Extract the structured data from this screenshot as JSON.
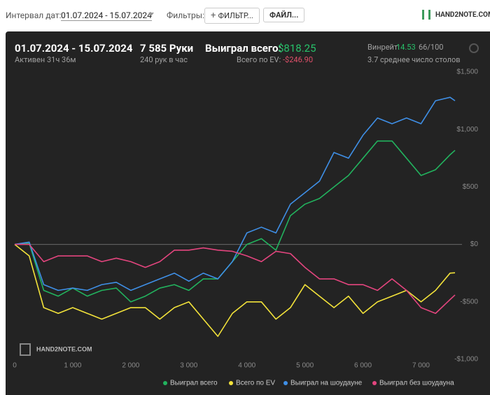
{
  "toolbar": {
    "date_label": "Интервал дат:",
    "date_value": "01.07.2024 - 15.07.2024",
    "filters_label": "Фильтры:",
    "filter_button": "ФИЛЬТР...",
    "file_button": "ФАЙЛ...",
    "logo": "HAND2NOTE.COM"
  },
  "stats": {
    "period": "01.07.2024 - 15.07.2024",
    "active": "Активен 31ч 36м",
    "hands": "7 585 Руки",
    "hands_per_hour": "240 рук в час",
    "won_label": "Выиграл всего:",
    "won_value": "$818.25",
    "ev_label": "Всего по EV:",
    "ev_value": "-$246.90",
    "winrate_label": "Винрейт:",
    "winrate_value": "14.53",
    "winrate_unit": "66/100",
    "tables": "3.7 среднее число столов"
  },
  "chart_data": {
    "type": "line",
    "watermark": "HAND2NOTE.COM",
    "x": [
      0,
      250,
      500,
      750,
      1000,
      1250,
      1500,
      1750,
      2000,
      2250,
      2500,
      2750,
      3000,
      3250,
      3500,
      3750,
      4000,
      4250,
      4500,
      4750,
      5000,
      5250,
      5500,
      5750,
      6000,
      6250,
      6500,
      6750,
      7000,
      7250,
      7500,
      7585
    ],
    "series": [
      {
        "name": "Выиграл всего",
        "color": "#22b35e",
        "values": [
          0,
          10,
          -400,
          -450,
          -380,
          -450,
          -400,
          -380,
          -500,
          -450,
          -380,
          -350,
          -400,
          -300,
          -300,
          -150,
          0,
          50,
          -50,
          250,
          350,
          400,
          500,
          600,
          750,
          900,
          900,
          750,
          600,
          650,
          780,
          818.25
        ]
      },
      {
        "name": "Всего по EV",
        "color": "#f2e23a",
        "values": [
          0,
          -100,
          -550,
          -600,
          -550,
          -600,
          -650,
          -600,
          -550,
          -550,
          -650,
          -550,
          -500,
          -650,
          -800,
          -600,
          -500,
          -500,
          -650,
          -550,
          -350,
          -450,
          -550,
          -450,
          -600,
          -500,
          -450,
          -400,
          -500,
          -400,
          -250,
          -246.9
        ]
      },
      {
        "name": "Выиграл на шоудауне",
        "color": "#3f8fe6",
        "values": [
          0,
          20,
          -350,
          -400,
          -380,
          -400,
          -350,
          -330,
          -400,
          -350,
          -300,
          -250,
          -320,
          -250,
          -300,
          -150,
          100,
          150,
          100,
          350,
          450,
          550,
          800,
          750,
          950,
          1100,
          1050,
          1100,
          1050,
          1250,
          1280,
          1250
        ]
      },
      {
        "name": "Выиграл без шоудауна",
        "color": "#e3457e",
        "values": [
          0,
          0,
          -150,
          -100,
          -100,
          -100,
          -150,
          -120,
          -150,
          -200,
          -150,
          -50,
          -50,
          -30,
          -50,
          -60,
          -100,
          -150,
          -60,
          -80,
          -200,
          -300,
          -300,
          -350,
          -350,
          -400,
          -300,
          -400,
          -550,
          -600,
          -480,
          -440
        ]
      }
    ],
    "xlim": [
      0,
      7585
    ],
    "ylim": [
      -1000,
      1500
    ],
    "xticks": [
      0,
      {
        "value": 1000,
        "label": "1 000"
      },
      {
        "value": 2000,
        "label": "2 000"
      },
      {
        "value": 3000,
        "label": "3 000"
      },
      {
        "value": 4000,
        "label": "4 000"
      },
      {
        "value": 5000,
        "label": "5 000"
      },
      {
        "value": 6000,
        "label": "6 000"
      },
      {
        "value": 7000,
        "label": "7 000"
      }
    ],
    "yticks": [
      {
        "value": -1000,
        "label": "-$1,000"
      },
      {
        "value": -500,
        "label": "-$500"
      },
      {
        "value": 0,
        "label": "$0"
      },
      {
        "value": 500,
        "label": "$500"
      },
      {
        "value": 1000,
        "label": "$1,000"
      },
      {
        "value": 1500,
        "label": "$1,500"
      }
    ]
  }
}
